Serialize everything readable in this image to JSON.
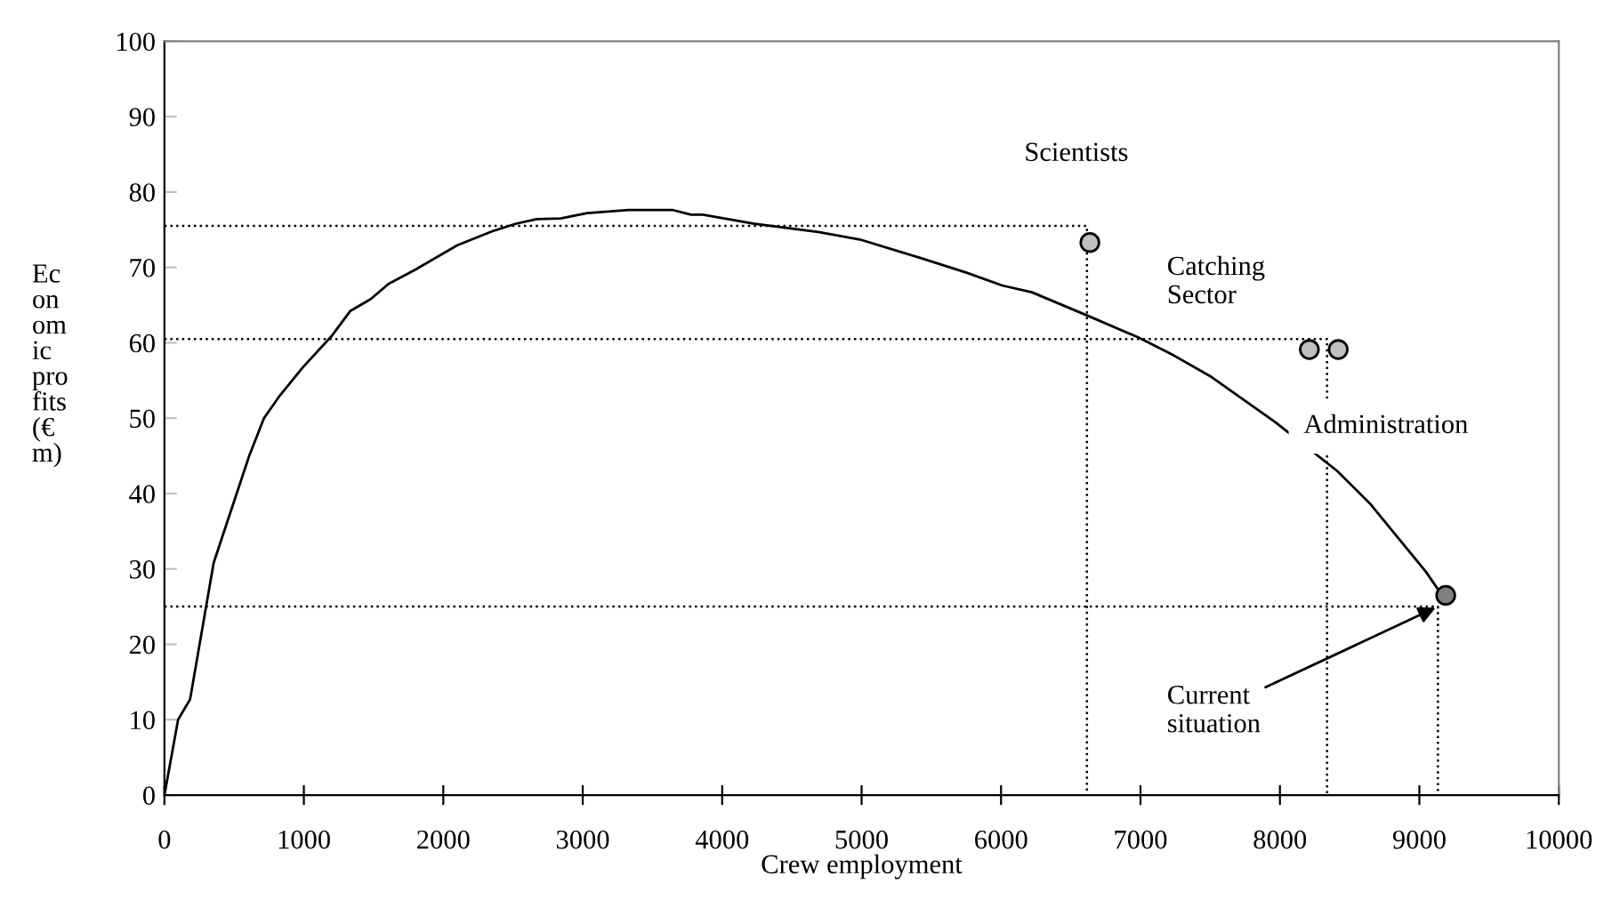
{
  "chart_data": {
    "type": "line",
    "xlabel": "Crew employment",
    "ylabel": "Ec\non\nom\nic\npro\nfits\n(€\nm)",
    "xlim": [
      0,
      10000
    ],
    "xticks": [
      0,
      1000,
      2000,
      3000,
      4000,
      5000,
      6000,
      7000,
      8000,
      9000,
      10000
    ],
    "ylim": [
      0,
      100
    ],
    "yticks": [
      0,
      10,
      20,
      30,
      40,
      50,
      60,
      70,
      80,
      90,
      100
    ],
    "grid": false,
    "legend": false,
    "series": [
      {
        "color": "#000000",
        "line_style": "solid",
        "marker": "none",
        "x": [
          0,
          98,
          184,
          353,
          608,
          714,
          820,
          991,
          1204,
          1332,
          1480,
          1607,
          1799,
          2097,
          2352,
          2522,
          2671,
          2841,
          3032,
          3329,
          3648,
          3776,
          3861,
          4222,
          4690,
          4987,
          5413,
          5753,
          6008,
          6221,
          6646,
          6986,
          7241,
          7497,
          7964,
          8410,
          8644,
          9048,
          9133
        ],
        "values": [
          0,
          10,
          12.7,
          30.8,
          45,
          50,
          52.8,
          56.7,
          61,
          64.2,
          65.8,
          67.8,
          69.7,
          72.9,
          74.8,
          75.8,
          76.4,
          76.5,
          77.2,
          77.6,
          77.6,
          77,
          77,
          75.8,
          74.7,
          73.7,
          71.3,
          69.3,
          67.6,
          66.7,
          63.4,
          60.7,
          58.3,
          55.6,
          49.5,
          43,
          38.7,
          29.6,
          27.3
        ]
      },
      {
        "type": "line",
        "color": "#000000",
        "line_style": "dotted",
        "marker": "none",
        "x": [
          0,
          6616,
          6616
        ],
        "values": [
          75.5,
          75.5,
          0
        ]
      },
      {
        "type": "line",
        "color": "#000000",
        "line_style": "dotted",
        "marker": "none",
        "x": [
          0,
          8338,
          8338
        ],
        "values": [
          60.5,
          60.5,
          0
        ]
      },
      {
        "type": "line",
        "color": "#000000",
        "line_style": "dotted",
        "marker": "none",
        "x": [
          0,
          9133,
          9133
        ],
        "values": [
          25,
          25,
          0
        ]
      },
      {
        "type": "scatter",
        "marker": "circle",
        "x": [
          6637,
          8211,
          8418,
          9189
        ],
        "values": [
          73.3,
          59.1,
          59.1,
          26.5
        ],
        "colors": [
          "#c0c0c0",
          "#c0c0c0",
          "#c0c0c0",
          "#808080"
        ]
      }
    ],
    "annotations": [
      "Scientists",
      "Catching\nSector",
      "Administration",
      {
        "text": "Current\nsituation",
        "x": 9133,
        "y": 25
      }
    ]
  }
}
